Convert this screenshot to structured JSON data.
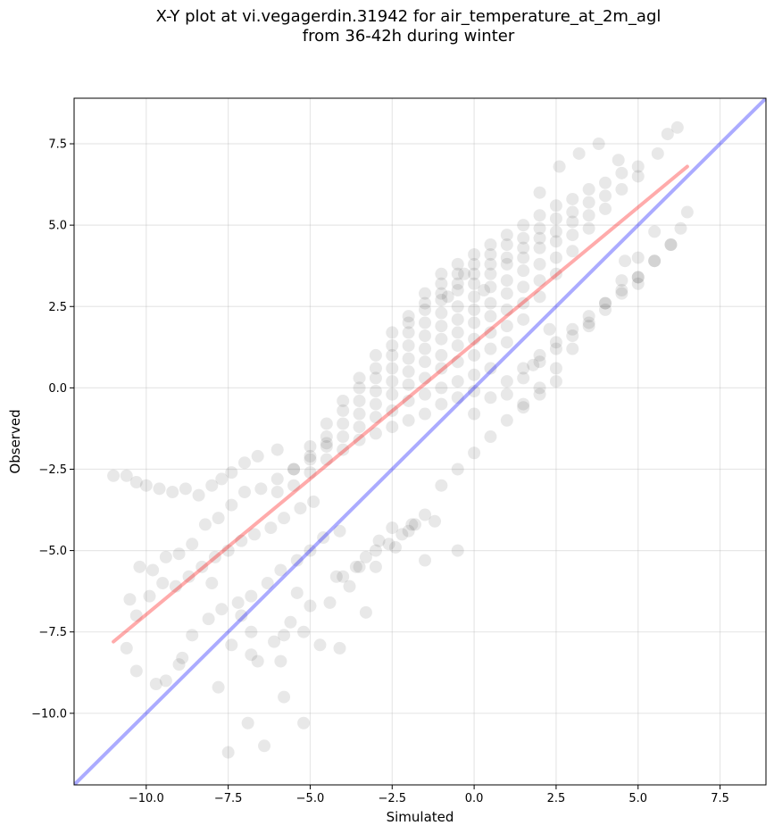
{
  "chart_data": {
    "type": "scatter",
    "title": "X-Y plot at vi.vegagerdin.31942 for air_temperature_at_2m_agl",
    "subtitle": "from 36-42h during winter",
    "xlabel": "Simulated",
    "ylabel": "Observed",
    "xlim": [
      -12.2,
      8.9
    ],
    "ylim": [
      -12.2,
      8.9
    ],
    "xticks": [
      "−10.0",
      "−7.5",
      "−5.0",
      "−2.5",
      "0.0",
      "2.5",
      "5.0",
      "7.5"
    ],
    "yticks": [
      "−10.0",
      "−7.5",
      "−5.0",
      "−2.5",
      "0.0",
      "2.5",
      "5.0",
      "7.5"
    ],
    "grid": true,
    "point_color": "#000000",
    "point_alpha": 0.09,
    "identity_line": {
      "x": [
        -12.2,
        8.9
      ],
      "y": [
        -12.2,
        8.9
      ],
      "color": "#0000ff"
    },
    "regression_line": {
      "x": [
        -11.0,
        6.5
      ],
      "y": [
        -7.8,
        6.8
      ],
      "color": "#ff0000"
    },
    "points": {
      "x": [
        -11.0,
        -10.6,
        -10.3,
        -10.0,
        -9.6,
        -9.2,
        -8.8,
        -8.4,
        -8.0,
        -7.7,
        -7.4,
        -7.0,
        -6.6,
        -6.0,
        -10.5,
        -10.2,
        -9.8,
        -9.4,
        -9.0,
        -8.6,
        -8.2,
        -7.8,
        -7.4,
        -7.0,
        -6.5,
        -6.0,
        -5.5,
        -5.0,
        -4.5,
        -10.6,
        -10.3,
        -9.9,
        -9.5,
        -9.1,
        -8.7,
        -8.3,
        -7.9,
        -7.5,
        -7.1,
        -6.7,
        -6.2,
        -5.8,
        -5.3,
        -4.9,
        -9.4,
        -9.0,
        -8.6,
        -8.1,
        -7.7,
        -7.2,
        -6.8,
        -6.3,
        -5.9,
        -5.4,
        -5.0,
        -4.6,
        -4.1,
        -7.5,
        -6.9,
        -6.4,
        -5.8,
        -5.2,
        -4.7,
        -4.1,
        -3.3,
        -4.0,
        -3.5,
        -3.0,
        -2.6,
        -2.2,
        -1.8,
        -6.0,
        -5.5,
        -5.0,
        -4.5,
        -4.0,
        -3.5,
        -3.0,
        -2.5,
        -2.0,
        -1.5,
        -1.0,
        -0.5,
        0.0,
        -5.5,
        -5.0,
        -4.5,
        -4.0,
        -3.5,
        -3.0,
        -2.5,
        -2.0,
        -1.5,
        -1.0,
        -0.5,
        0.0,
        0.5,
        -5.0,
        -4.5,
        -4.0,
        -3.5,
        -3.0,
        -2.5,
        -2.0,
        -1.5,
        -1.0,
        -0.5,
        0.0,
        0.5,
        1.0,
        -4.5,
        -4.0,
        -3.5,
        -3.0,
        -2.5,
        -2.0,
        -1.5,
        -1.0,
        -0.5,
        0.0,
        0.5,
        1.0,
        1.5,
        -4.0,
        -3.5,
        -3.0,
        -2.5,
        -2.0,
        -1.5,
        -1.0,
        -0.5,
        0.0,
        0.5,
        1.0,
        1.5,
        2.0,
        -3.5,
        -3.0,
        -2.5,
        -2.0,
        -1.5,
        -1.0,
        -0.5,
        0.0,
        0.5,
        1.0,
        1.5,
        2.0,
        2.5,
        -3.0,
        -2.5,
        -2.0,
        -1.5,
        -1.0,
        -0.5,
        0.0,
        0.5,
        1.0,
        1.5,
        2.0,
        2.5,
        3.0,
        -2.5,
        -2.0,
        -1.5,
        -1.0,
        -0.5,
        0.0,
        0.5,
        1.0,
        1.5,
        2.0,
        2.5,
        3.0,
        3.5,
        -2.0,
        -1.5,
        -1.0,
        -0.5,
        0.0,
        0.5,
        1.0,
        1.5,
        2.0,
        2.5,
        3.0,
        3.5,
        4.0,
        -1.5,
        -1.0,
        -0.5,
        0.0,
        0.5,
        1.0,
        1.5,
        2.0,
        2.5,
        3.0,
        3.5,
        4.0,
        4.5,
        -1.0,
        -0.5,
        0.0,
        0.5,
        1.0,
        1.5,
        2.0,
        2.5,
        3.0,
        3.5,
        4.0,
        4.5,
        5.0,
        0.0,
        0.5,
        1.0,
        1.5,
        2.0,
        2.5,
        3.0,
        3.5,
        4.0,
        4.5,
        5.0,
        5.5,
        6.0,
        1.0,
        1.5,
        2.0,
        2.5,
        3.0,
        3.5,
        4.0,
        4.5,
        5.0,
        5.5,
        6.0,
        6.3,
        6.5,
        2.0,
        2.6,
        3.2,
        3.8,
        4.4,
        5.0,
        5.6,
        5.9,
        6.2,
        1.5,
        2.0,
        2.5,
        3.0,
        3.5,
        4.0,
        4.5,
        5.0,
        5.5,
        -1.0,
        -0.5,
        0.0,
        0.5,
        1.0,
        1.5,
        2.0,
        2.5,
        -7.8,
        -6.8,
        -6.6,
        -5.9,
        -5.2,
        -4.2,
        -3.3,
        -2.9,
        -2.5,
        -1.9,
        -1.2,
        -0.5,
        -8.0,
        -7.1,
        -6.1,
        -5.8,
        -5.4,
        -5.0,
        -3.8,
        -3.0,
        -2.0,
        -1.5,
        1.8,
        2.3,
        5.0,
        4.6,
        -0.8,
        -0.3,
        0.3,
        -1.5,
        -2.4,
        -3.6,
        -4.4,
        -5.6,
        -6.8,
        -7.4,
        -8.9,
        -9.7,
        -10.3
      ],
      "y": [
        -2.7,
        -2.7,
        -2.9,
        -3.0,
        -3.1,
        -3.2,
        -3.1,
        -3.3,
        -3.0,
        -2.8,
        -2.6,
        -2.3,
        -2.1,
        -1.9,
        -6.5,
        -5.5,
        -5.6,
        -5.2,
        -5.1,
        -4.8,
        -4.2,
        -4.0,
        -3.6,
        -3.2,
        -3.1,
        -2.8,
        -2.5,
        -2.1,
        -1.7,
        -8.0,
        -7.0,
        -6.4,
        -6.0,
        -6.1,
        -5.8,
        -5.5,
        -5.2,
        -5.0,
        -4.7,
        -4.5,
        -4.3,
        -4.0,
        -3.7,
        -3.5,
        -9.0,
        -8.5,
        -7.6,
        -7.1,
        -6.8,
        -6.6,
        -6.4,
        -6.0,
        -5.6,
        -5.3,
        -5.0,
        -4.6,
        -4.4,
        -11.2,
        -10.3,
        -11.0,
        -9.5,
        -10.3,
        -7.9,
        -8.0,
        -6.9,
        -5.8,
        -5.5,
        -5.0,
        -4.8,
        -4.5,
        -4.2,
        -3.2,
        -3.0,
        -2.6,
        -2.2,
        -1.9,
        -1.6,
        -1.4,
        -1.2,
        -1.0,
        -0.8,
        -0.5,
        -0.3,
        -0.1,
        -2.5,
        -2.2,
        -1.8,
        -1.5,
        -1.2,
        -0.9,
        -0.7,
        -0.4,
        -0.2,
        0.0,
        0.2,
        0.4,
        0.6,
        -1.8,
        -1.5,
        -1.1,
        -0.8,
        -0.5,
        -0.2,
        0.1,
        0.3,
        0.6,
        0.8,
        1.0,
        1.2,
        1.4,
        -1.1,
        -0.7,
        -0.4,
        -0.1,
        0.2,
        0.5,
        0.8,
        1.0,
        1.3,
        1.5,
        1.7,
        1.9,
        2.1,
        -0.4,
        0.0,
        0.3,
        0.6,
        0.9,
        1.2,
        1.5,
        1.7,
        2.0,
        2.2,
        2.4,
        2.6,
        2.8,
        0.3,
        0.6,
        1.0,
        1.3,
        1.6,
        1.9,
        2.1,
        2.4,
        2.6,
        2.9,
        3.1,
        3.3,
        3.5,
        1.0,
        1.3,
        1.7,
        2.0,
        2.3,
        2.5,
        2.8,
        3.1,
        3.3,
        3.6,
        3.8,
        4.0,
        4.2,
        1.7,
        2.0,
        2.4,
        2.7,
        3.0,
        3.2,
        3.5,
        3.8,
        4.0,
        4.3,
        4.5,
        4.7,
        4.9,
        2.2,
        2.6,
        2.9,
        3.2,
        3.5,
        3.8,
        4.0,
        4.3,
        4.6,
        4.8,
        5.1,
        5.3,
        5.5,
        2.9,
        3.2,
        3.5,
        3.8,
        4.1,
        4.4,
        4.6,
        4.9,
        5.2,
        5.4,
        5.7,
        5.9,
        6.1,
        3.5,
        3.8,
        4.1,
        4.4,
        4.7,
        5.0,
        5.3,
        5.6,
        5.8,
        6.1,
        6.3,
        6.6,
        6.8,
        -0.8,
        -0.3,
        0.2,
        0.6,
        1.0,
        1.4,
        1.8,
        2.2,
        2.6,
        3.0,
        3.4,
        3.9,
        4.4,
        -0.2,
        0.3,
        0.8,
        1.2,
        1.6,
        2.0,
        2.4,
        2.9,
        3.4,
        3.9,
        4.4,
        4.9,
        5.4,
        6.0,
        6.8,
        7.2,
        7.5,
        7.0,
        6.5,
        7.2,
        7.8,
        8.0,
        -0.5,
        0.0,
        0.6,
        1.2,
        1.9,
        2.6,
        3.3,
        4.0,
        4.8,
        -3.0,
        -2.5,
        -2.0,
        -1.5,
        -1.0,
        -0.6,
        -0.2,
        0.2,
        -9.2,
        -8.2,
        -8.4,
        -8.4,
        -7.5,
        -5.8,
        -5.2,
        -4.7,
        -4.3,
        -4.2,
        -4.1,
        -5.0,
        -6.0,
        -7.0,
        -7.8,
        -7.6,
        -6.3,
        -6.7,
        -6.1,
        -5.5,
        -4.4,
        -5.3,
        0.7,
        1.8,
        3.2,
        3.9,
        2.8,
        3.5,
        3.0,
        -3.9,
        -4.9,
        -5.5,
        -6.6,
        -7.2,
        -7.5,
        -7.9,
        -8.3,
        -9.1,
        -8.7
      ]
    }
  }
}
